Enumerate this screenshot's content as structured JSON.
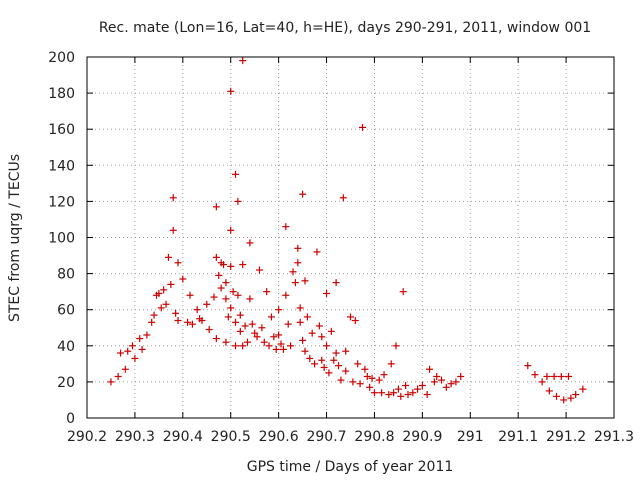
{
  "chart_data": {
    "type": "scatter",
    "title": "Rec. mate (Lon=16, Lat=40, h=HE), days 290-291, 2011, window 001",
    "xlabel": "GPS time / Days of year 2011",
    "ylabel": "STEC from uqrg / TECUs",
    "xlim": [
      290.2,
      291.3
    ],
    "ylim": [
      0,
      200
    ],
    "xticks": [
      "290.2",
      "290.3",
      "290.4",
      "290.5",
      "290.6",
      "290.7",
      "290.8",
      "290.9",
      "291",
      "291.1",
      "291.2",
      "291.3"
    ],
    "yticks": [
      "0",
      "20",
      "40",
      "60",
      "80",
      "100",
      "120",
      "140",
      "160",
      "180",
      "200"
    ],
    "grid": true,
    "marker": "+",
    "color": "#cc0000",
    "points": [
      [
        290.25,
        20
      ],
      [
        290.265,
        23
      ],
      [
        290.27,
        36
      ],
      [
        290.28,
        27
      ],
      [
        290.285,
        37
      ],
      [
        290.295,
        40
      ],
      [
        290.3,
        33
      ],
      [
        290.31,
        44
      ],
      [
        290.315,
        38
      ],
      [
        290.325,
        46
      ],
      [
        290.335,
        53
      ],
      [
        290.34,
        57
      ],
      [
        290.345,
        68
      ],
      [
        290.35,
        69
      ],
      [
        290.355,
        61
      ],
      [
        290.36,
        71
      ],
      [
        290.365,
        63
      ],
      [
        290.37,
        89
      ],
      [
        290.375,
        74
      ],
      [
        290.38,
        122
      ],
      [
        290.38,
        104
      ],
      [
        290.385,
        58
      ],
      [
        290.39,
        86
      ],
      [
        290.39,
        54
      ],
      [
        290.4,
        77
      ],
      [
        290.41,
        53
      ],
      [
        290.415,
        68
      ],
      [
        290.42,
        52
      ],
      [
        290.43,
        60
      ],
      [
        290.435,
        55
      ],
      [
        290.44,
        54
      ],
      [
        290.45,
        63
      ],
      [
        290.455,
        49
      ],
      [
        290.465,
        67
      ],
      [
        290.47,
        117
      ],
      [
        290.47,
        89
      ],
      [
        290.47,
        44
      ],
      [
        290.475,
        79
      ],
      [
        290.48,
        72
      ],
      [
        290.48,
        86
      ],
      [
        290.485,
        85
      ],
      [
        290.49,
        75
      ],
      [
        290.49,
        66
      ],
      [
        290.49,
        42
      ],
      [
        290.495,
        56
      ],
      [
        290.5,
        181
      ],
      [
        290.5,
        104
      ],
      [
        290.5,
        84
      ],
      [
        290.5,
        61
      ],
      [
        290.505,
        70
      ],
      [
        290.51,
        135
      ],
      [
        290.51,
        53
      ],
      [
        290.51,
        40
      ],
      [
        290.515,
        120
      ],
      [
        290.515,
        68
      ],
      [
        290.52,
        57
      ],
      [
        290.52,
        48
      ],
      [
        290.525,
        198
      ],
      [
        290.525,
        85
      ],
      [
        290.525,
        40
      ],
      [
        290.53,
        51
      ],
      [
        290.535,
        42
      ],
      [
        290.54,
        97
      ],
      [
        290.54,
        66
      ],
      [
        290.545,
        52
      ],
      [
        290.55,
        47
      ],
      [
        290.555,
        45
      ],
      [
        290.56,
        82
      ],
      [
        290.565,
        50
      ],
      [
        290.57,
        42
      ],
      [
        290.575,
        70
      ],
      [
        290.58,
        40
      ],
      [
        290.585,
        56
      ],
      [
        290.59,
        45
      ],
      [
        290.595,
        38
      ],
      [
        290.6,
        60
      ],
      [
        290.6,
        46
      ],
      [
        290.605,
        41
      ],
      [
        290.61,
        38
      ],
      [
        290.615,
        106
      ],
      [
        290.615,
        68
      ],
      [
        290.62,
        52
      ],
      [
        290.625,
        40
      ],
      [
        290.63,
        81
      ],
      [
        290.635,
        75
      ],
      [
        290.64,
        94
      ],
      [
        290.64,
        86
      ],
      [
        290.645,
        61
      ],
      [
        290.645,
        53
      ],
      [
        290.65,
        124
      ],
      [
        290.65,
        43
      ],
      [
        290.655,
        76
      ],
      [
        290.655,
        37
      ],
      [
        290.66,
        56
      ],
      [
        290.665,
        33
      ],
      [
        290.67,
        47
      ],
      [
        290.675,
        30
      ],
      [
        290.68,
        92
      ],
      [
        290.685,
        51
      ],
      [
        290.69,
        45
      ],
      [
        290.69,
        32
      ],
      [
        290.695,
        28
      ],
      [
        290.7,
        69
      ],
      [
        290.7,
        40
      ],
      [
        290.705,
        25
      ],
      [
        290.71,
        48
      ],
      [
        290.715,
        32
      ],
      [
        290.72,
        75
      ],
      [
        290.72,
        36
      ],
      [
        290.725,
        29
      ],
      [
        290.73,
        21
      ],
      [
        290.735,
        122
      ],
      [
        290.74,
        37
      ],
      [
        290.74,
        26
      ],
      [
        290.75,
        56
      ],
      [
        290.755,
        20
      ],
      [
        290.76,
        54
      ],
      [
        290.765,
        30
      ],
      [
        290.77,
        19
      ],
      [
        290.775,
        161
      ],
      [
        290.78,
        27
      ],
      [
        290.785,
        23
      ],
      [
        290.79,
        17
      ],
      [
        290.795,
        22
      ],
      [
        290.8,
        14
      ],
      [
        290.81,
        21
      ],
      [
        290.815,
        14
      ],
      [
        290.82,
        24
      ],
      [
        290.83,
        13
      ],
      [
        290.835,
        30
      ],
      [
        290.84,
        14
      ],
      [
        290.845,
        40
      ],
      [
        290.85,
        16
      ],
      [
        290.855,
        12
      ],
      [
        290.86,
        70
      ],
      [
        290.865,
        18
      ],
      [
        290.87,
        13
      ],
      [
        290.88,
        14
      ],
      [
        290.89,
        16
      ],
      [
        290.9,
        18
      ],
      [
        290.91,
        13
      ],
      [
        290.915,
        27
      ],
      [
        290.925,
        20
      ],
      [
        290.93,
        23
      ],
      [
        290.94,
        21
      ],
      [
        290.95,
        17
      ],
      [
        290.96,
        19
      ],
      [
        290.97,
        20
      ],
      [
        290.98,
        23
      ],
      [
        291.12,
        29
      ],
      [
        291.135,
        24
      ],
      [
        291.15,
        20
      ],
      [
        291.16,
        23
      ],
      [
        291.165,
        15
      ],
      [
        291.175,
        23
      ],
      [
        291.18,
        12
      ],
      [
        291.19,
        23
      ],
      [
        291.195,
        10
      ],
      [
        291.205,
        23
      ],
      [
        291.21,
        11
      ],
      [
        291.22,
        13
      ],
      [
        291.235,
        16
      ]
    ]
  }
}
